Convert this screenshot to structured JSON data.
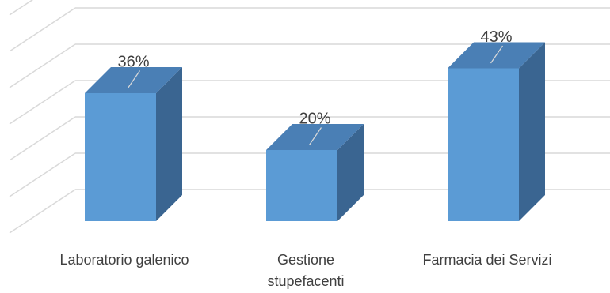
{
  "chart_data": {
    "type": "bar",
    "categories": [
      "Laboratorio galenico",
      "Gestione stupefacenti",
      "Farmacia dei Servizi"
    ],
    "category_lines": [
      [
        "Laboratorio galenico"
      ],
      [
        "Gestione",
        "stupefacenti"
      ],
      [
        "Farmacia dei Servizi"
      ]
    ],
    "values": [
      36,
      20,
      43
    ],
    "data_labels": [
      "36%",
      "20%",
      "43%"
    ],
    "title": "",
    "xlabel": "",
    "ylabel": "",
    "ylim": [
      0,
      60
    ],
    "grid": true,
    "three_d": true,
    "colors": {
      "bar_front": "#5b9bd5",
      "bar_side": "#3a6591",
      "bar_top": "#4a7fb5",
      "gridline": "#d9d9d9",
      "label_text": "#404040",
      "leader_line": "#d9d9d9"
    }
  }
}
